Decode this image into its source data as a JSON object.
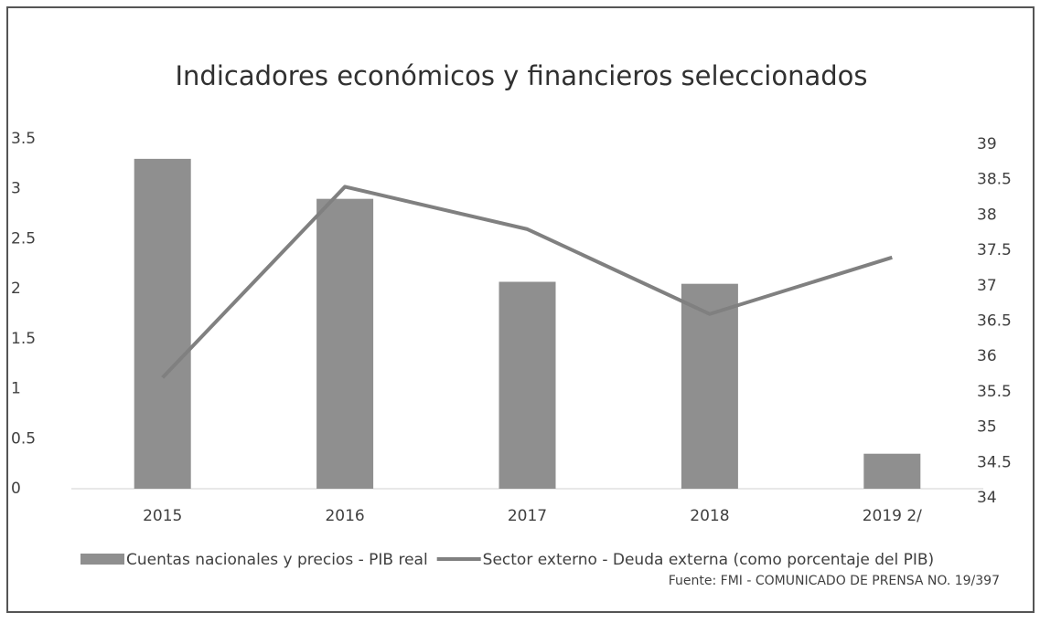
{
  "chart_data": {
    "type": "combo",
    "title": "Indicadores económicos y financieros seleccionados",
    "categories": [
      "2015",
      "2016",
      "2017",
      "2018",
      "2019 2/"
    ],
    "series": [
      {
        "name": "Cuentas nacionales y precios - PIB real",
        "type": "bar",
        "color": "#8f8f8f",
        "values": [
          3.3,
          2.9,
          2.07,
          2.05,
          0.35
        ]
      },
      {
        "name": "Sector externo - Deuda externa (como porcentaje del PIB)",
        "type": "line",
        "axis": "y2",
        "color": "#808080",
        "values": [
          35.7,
          38.4,
          37.8,
          36.6,
          37.4
        ]
      }
    ],
    "ylim": [
      0,
      3.5
    ],
    "yticks": [
      0,
      0.5,
      1,
      1.5,
      2,
      2.5,
      3,
      3.5
    ],
    "y2lim": [
      34,
      39
    ],
    "y2ticks": [
      34,
      34.5,
      35,
      35.5,
      36,
      36.5,
      37,
      37.5,
      38,
      38.5,
      39
    ],
    "legend": "bottom",
    "source": "Fuente: FMI - COMUNICADO DE PRENSA NO. 19/397"
  }
}
